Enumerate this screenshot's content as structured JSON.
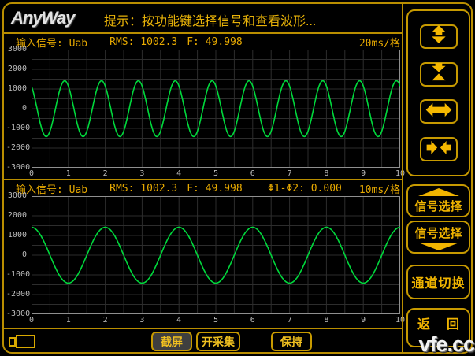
{
  "header": {
    "logo": "AnyWay",
    "hint": "提示：按功能键选择信号和查看波形..."
  },
  "panels": [
    {
      "signal": "输入信号: Uab",
      "rms": "RMS: 1002.3",
      "freq": "F: 49.998",
      "phase": "",
      "timebase": "20ms/格"
    },
    {
      "signal": "输入信号: Uab",
      "rms": "RMS: 1002.3",
      "freq": "F: 49.998",
      "phase": "Φ1-Φ2: 0.000",
      "timebase": "10ms/格"
    }
  ],
  "chart_data": {
    "type": "line",
    "line_color": "#00d83c",
    "grid_color": "#2d2d2d",
    "frame_color": "#8f8f8f",
    "y_ticks": [
      3000,
      2000,
      1000,
      0,
      -1000,
      -2000,
      -3000
    ],
    "x_ticks": [
      0,
      1,
      2,
      3,
      4,
      5,
      6,
      7,
      8,
      9,
      10
    ],
    "panels": [
      {
        "name": "top-waveform",
        "x_range": [
          0,
          10
        ],
        "y_range": [
          -3000,
          3000
        ],
        "grid_x_step": 0.5,
        "grid_y_step": 500,
        "wave": {
          "type": "sine",
          "amplitude": 1417,
          "cycles": 10,
          "peak_at": 0.9
        },
        "time_per_div": "20ms"
      },
      {
        "name": "bottom-waveform",
        "x_range": [
          0,
          10
        ],
        "y_range": [
          -3000,
          3000
        ],
        "grid_x_step": 0.5,
        "grid_y_step": 500,
        "wave": {
          "type": "sine",
          "amplitude": 1417,
          "cycles": 5,
          "peak_at": 0.0
        },
        "time_per_div": "10ms"
      }
    ]
  },
  "sidebar": {
    "zoom_buttons": [
      {
        "icon": "expand-vertical-icon"
      },
      {
        "icon": "compress-vertical-icon"
      },
      {
        "icon": "expand-horizontal-icon"
      },
      {
        "icon": "compress-horizontal-icon"
      }
    ],
    "signal_select_up": "信号选择",
    "signal_select_down": "信号选择",
    "channel_switch": "通道切换",
    "return_left": "返",
    "return_right": "回"
  },
  "bottom_bar": {
    "screenshot": "截屏",
    "start_acquisition": "开采集",
    "hold": "保持"
  },
  "watermark": "vfe.cc",
  "colors": {
    "border_gold": "#b98e00",
    "text_gold": "#e9b308",
    "trace_green": "#00d83c",
    "active_button_bg": "#3f3f3f",
    "watermark_white": "#f2f2f2"
  }
}
